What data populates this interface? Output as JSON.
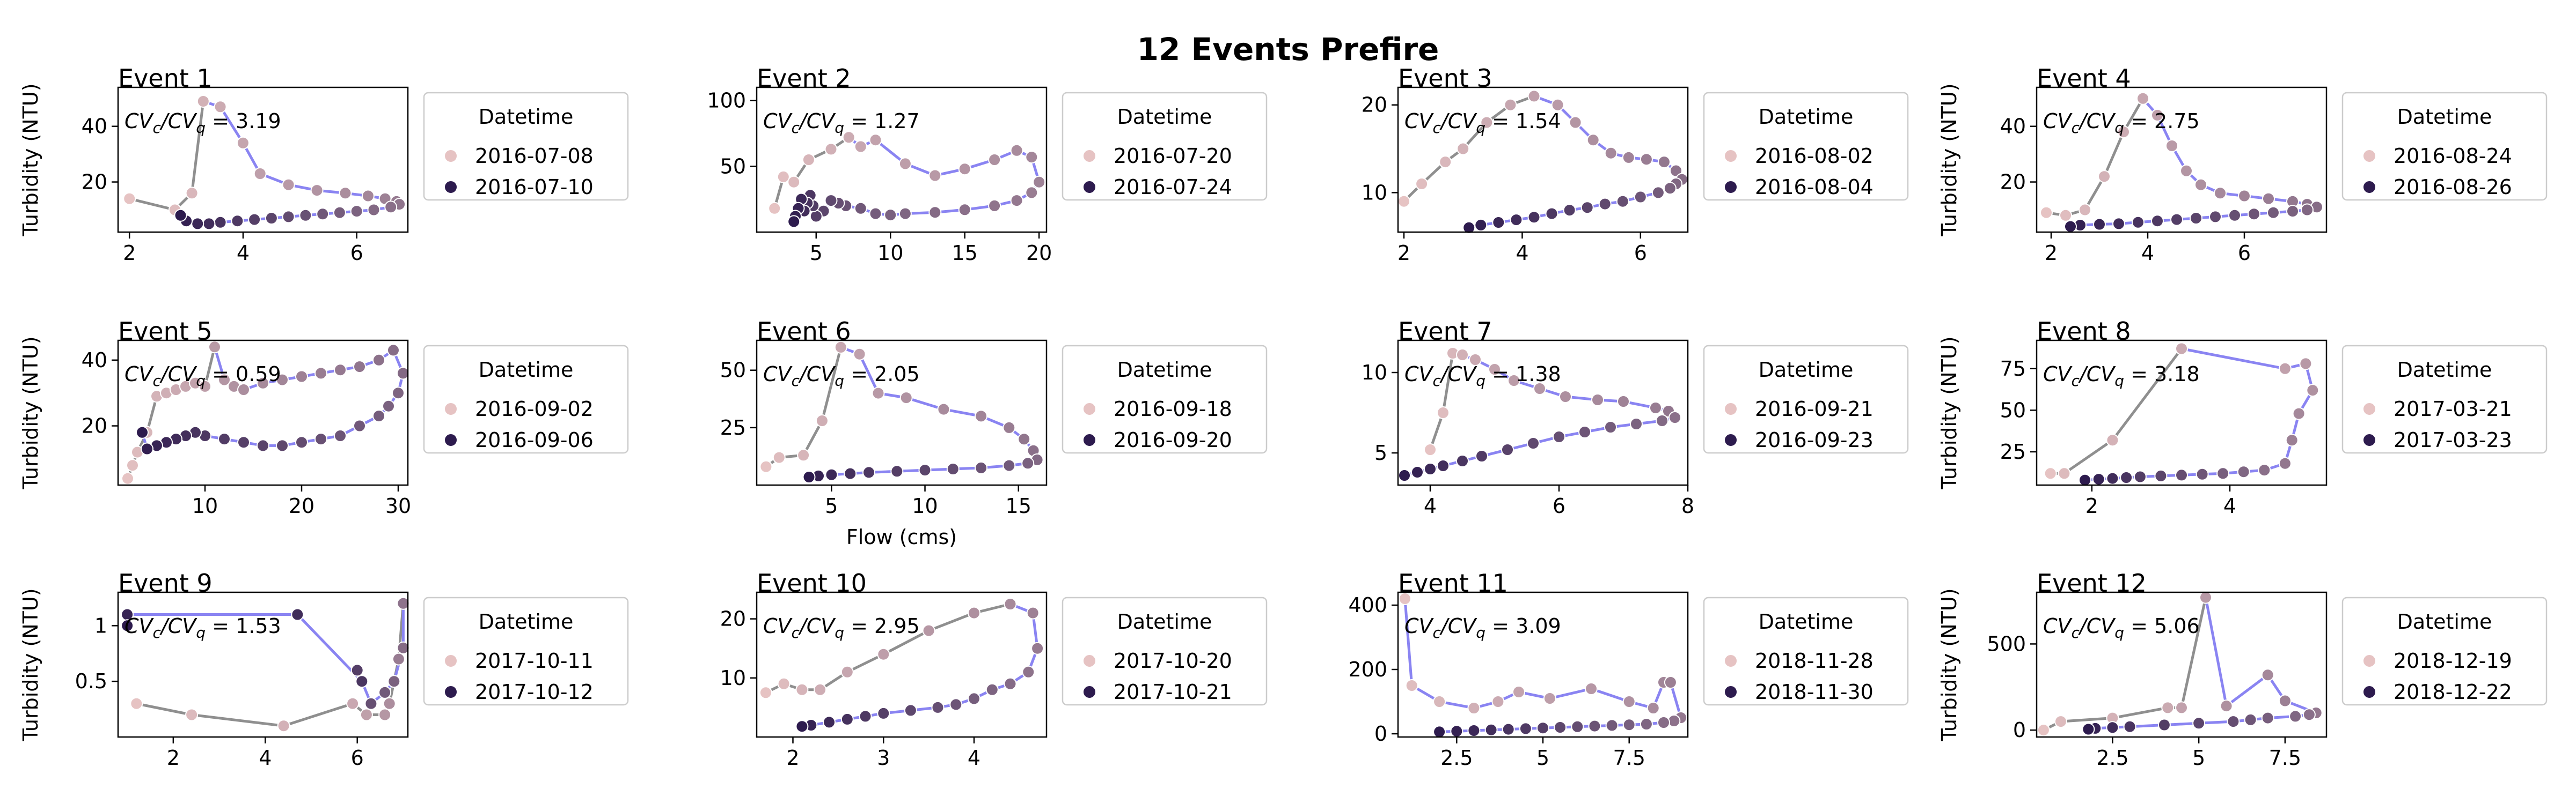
{
  "suptitle": "12 Events Prefire",
  "ylabel": "Turbidity (NTU)",
  "xlabel": "Flow (cms)",
  "legend_title": "Datetime",
  "ratio_label": "CVc/CVq",
  "colors": {
    "early": "#e6c3c3",
    "late": "#2d1b4e",
    "line_rising": "#8f8f8f",
    "line_falling": "#8a84f2"
  },
  "chart_data": [
    {
      "type": "scatter",
      "title": "Event 1",
      "ratio": "3.19",
      "legend": [
        "2016-07-08",
        "2016-07-10"
      ],
      "xlim": [
        1.8,
        6.9
      ],
      "ylim": [
        2,
        54
      ],
      "xticks": [
        2,
        4,
        6
      ],
      "yticks": [
        20,
        40
      ],
      "x": [
        2.0,
        2.8,
        3.1,
        3.3,
        3.6,
        4.0,
        4.3,
        4.8,
        5.3,
        5.8,
        6.2,
        6.5,
        6.7,
        6.75,
        6.6,
        6.3,
        6.0,
        5.7,
        5.4,
        5.1,
        4.8,
        4.5,
        4.2,
        3.9,
        3.6,
        3.4,
        3.2,
        3.0,
        2.9
      ],
      "y": [
        14,
        10,
        16,
        49,
        47,
        34,
        23,
        19,
        17,
        16,
        15,
        14,
        13,
        12,
        11,
        10,
        9.5,
        9,
        8.5,
        8,
        7.5,
        7,
        6.5,
        6,
        5.5,
        5,
        5,
        6,
        8
      ]
    },
    {
      "type": "scatter",
      "title": "Event 2",
      "ratio": "1.27",
      "legend": [
        "2016-07-20",
        "2016-07-24"
      ],
      "xlim": [
        1,
        20.5
      ],
      "ylim": [
        0,
        110
      ],
      "xticks": [
        5,
        10,
        15,
        20
      ],
      "yticks": [
        50,
        100
      ],
      "x": [
        2.2,
        2.8,
        3.5,
        4.5,
        6,
        7.2,
        8,
        9,
        11,
        13,
        15,
        17,
        18.5,
        19.5,
        20,
        19.5,
        18.5,
        17,
        15,
        13,
        11,
        10,
        9,
        8,
        7,
        6.5,
        6,
        5.5,
        5,
        4.8,
        4.6,
        4.4,
        4.2,
        4.0,
        3.8,
        3.6,
        3.5
      ],
      "y": [
        18,
        42,
        38,
        55,
        63,
        72,
        65,
        70,
        52,
        43,
        48,
        55,
        62,
        57,
        38,
        30,
        24,
        20,
        17,
        15,
        14,
        13,
        14,
        18,
        20,
        22,
        24,
        16,
        12,
        20,
        28,
        22,
        16,
        25,
        18,
        12,
        8
      ]
    },
    {
      "type": "scatter",
      "title": "Event 3",
      "ratio": "1.54",
      "legend": [
        "2016-08-02",
        "2016-08-04"
      ],
      "xlim": [
        1.9,
        6.8
      ],
      "ylim": [
        5.5,
        22
      ],
      "xticks": [
        2,
        4,
        6
      ],
      "yticks": [
        10,
        20
      ],
      "x": [
        2.0,
        2.3,
        2.7,
        3.0,
        3.4,
        3.8,
        4.2,
        4.6,
        4.9,
        5.2,
        5.5,
        5.8,
        6.1,
        6.4,
        6.6,
        6.7,
        6.6,
        6.5,
        6.3,
        6.0,
        5.7,
        5.4,
        5.1,
        4.8,
        4.5,
        4.2,
        3.9,
        3.6,
        3.3,
        3.1
      ],
      "y": [
        9,
        11,
        13.5,
        15,
        18,
        20,
        21,
        20,
        18,
        16,
        14.5,
        14,
        13.8,
        13.5,
        12.5,
        11.5,
        11,
        10.5,
        10,
        9.5,
        9,
        8.7,
        8.3,
        8,
        7.6,
        7.2,
        6.9,
        6.6,
        6.3,
        6
      ]
    },
    {
      "type": "scatter",
      "title": "Event 4",
      "ratio": "2.75",
      "legend": [
        "2016-08-24",
        "2016-08-26"
      ],
      "xlim": [
        1.7,
        7.7
      ],
      "ylim": [
        2,
        54
      ],
      "xticks": [
        2,
        4,
        6
      ],
      "yticks": [
        20,
        40
      ],
      "x": [
        1.9,
        2.3,
        2.7,
        3.1,
        3.5,
        3.9,
        4.2,
        4.5,
        4.8,
        5.1,
        5.5,
        6.0,
        6.5,
        7.0,
        7.3,
        7.5,
        7.3,
        7.0,
        6.6,
        6.2,
        5.8,
        5.4,
        5.0,
        4.6,
        4.2,
        3.8,
        3.4,
        3.0,
        2.6,
        2.4
      ],
      "y": [
        9,
        8,
        10,
        22,
        38,
        50,
        44,
        33,
        24,
        19,
        16,
        15,
        14,
        13,
        12,
        11,
        10,
        9.5,
        9,
        8.5,
        8,
        7.5,
        7,
        6.5,
        6,
        5.5,
        5,
        4.8,
        4.5,
        4
      ]
    },
    {
      "type": "scatter",
      "title": "Event 5",
      "ratio": "0.59",
      "legend": [
        "2016-09-02",
        "2016-09-06"
      ],
      "xlim": [
        1,
        31
      ],
      "ylim": [
        2,
        46
      ],
      "xticks": [
        10,
        20,
        30
      ],
      "yticks": [
        20,
        40
      ],
      "x": [
        2,
        2.5,
        3,
        4,
        5,
        6,
        7,
        8,
        9,
        10,
        11,
        12,
        13,
        14,
        16,
        18,
        20,
        22,
        24,
        26,
        28,
        29.5,
        30.5,
        30,
        29,
        28,
        26,
        24,
        22,
        20,
        18,
        16,
        14,
        12,
        10,
        9,
        8,
        7,
        6,
        5,
        4,
        3.5
      ],
      "y": [
        4,
        8,
        12,
        18,
        29,
        30,
        31,
        32,
        33,
        32,
        44,
        34,
        32,
        31,
        33,
        34,
        35,
        36,
        37,
        38,
        40,
        43,
        36,
        30,
        26,
        23,
        20,
        17,
        16,
        15,
        14,
        14,
        15,
        16,
        17,
        18,
        17,
        16,
        15,
        14,
        13,
        18
      ]
    },
    {
      "type": "scatter",
      "title": "Event 6",
      "ratio": "2.05",
      "legend": [
        "2016-09-18",
        "2016-09-20"
      ],
      "xlim": [
        1,
        16.5
      ],
      "ylim": [
        0,
        63
      ],
      "xticks": [
        5,
        10,
        15
      ],
      "yticks": [
        25,
        50
      ],
      "x": [
        1.5,
        2.2,
        3.5,
        4.5,
        5.5,
        6.5,
        7.5,
        9,
        11,
        13,
        14.5,
        15.3,
        15.8,
        16,
        15.5,
        14.5,
        13,
        11.5,
        10,
        8.5,
        7,
        6,
        5,
        4.3,
        3.8
      ],
      "y": [
        8,
        12,
        13,
        28,
        60,
        57,
        40,
        38,
        33,
        30,
        25,
        20,
        15,
        11,
        9.5,
        8.5,
        7.5,
        7,
        6.5,
        6,
        5.5,
        5,
        4.5,
        4,
        3.5
      ]
    },
    {
      "type": "scatter",
      "title": "Event 7",
      "ratio": "1.38",
      "legend": [
        "2016-09-21",
        "2016-09-23"
      ],
      "xlim": [
        3.5,
        8
      ],
      "ylim": [
        3,
        12
      ],
      "xticks": [
        4,
        6,
        8
      ],
      "yticks": [
        5,
        10
      ],
      "x": [
        4.0,
        4.2,
        4.35,
        4.5,
        4.7,
        5.0,
        5.3,
        5.7,
        6.1,
        6.6,
        7.0,
        7.5,
        7.7,
        7.8,
        7.6,
        7.2,
        6.8,
        6.4,
        6.0,
        5.6,
        5.2,
        4.8,
        4.5,
        4.2,
        4.0,
        3.8,
        3.6
      ],
      "y": [
        5.2,
        7.5,
        11.2,
        11.1,
        10.8,
        10.2,
        9.5,
        9,
        8.5,
        8.3,
        8.2,
        7.8,
        7.6,
        7.2,
        7,
        6.8,
        6.6,
        6.3,
        6,
        5.6,
        5.2,
        4.8,
        4.5,
        4.2,
        4,
        3.8,
        3.6
      ]
    },
    {
      "type": "scatter",
      "title": "Event 8",
      "ratio": "3.18",
      "legend": [
        "2017-03-21",
        "2017-03-23"
      ],
      "xlim": [
        1.2,
        5.4
      ],
      "ylim": [
        5,
        92
      ],
      "xticks": [
        2,
        4
      ],
      "yticks": [
        25,
        50,
        75
      ],
      "x": [
        1.4,
        1.6,
        2.3,
        3.3,
        4.8,
        5.1,
        5.2,
        5.0,
        4.9,
        4.8,
        4.5,
        4.2,
        3.9,
        3.6,
        3.3,
        3.0,
        2.7,
        2.5,
        2.3,
        2.1,
        1.9
      ],
      "y": [
        12,
        12,
        32,
        87,
        75,
        78,
        62,
        48,
        32,
        18,
        14,
        13,
        12,
        11.5,
        11,
        10.5,
        10,
        9.5,
        9,
        8.5,
        8
      ]
    },
    {
      "type": "scatter",
      "title": "Event 9",
      "ratio": "1.53",
      "legend": [
        "2017-10-11",
        "2017-10-12"
      ],
      "xlim": [
        0.8,
        7.1
      ],
      "ylim": [
        0,
        1.3
      ],
      "xticks": [
        2,
        4,
        6
      ],
      "yticks": [
        0.5,
        1.0
      ],
      "x": [
        1.2,
        2.4,
        4.4,
        5.9,
        6.2,
        6.6,
        6.7,
        6.8,
        6.9,
        7.0,
        7.0,
        6.8,
        6.6,
        6.3,
        6.1,
        6.0,
        6.1,
        4.7,
        1.0,
        1.0
      ],
      "y": [
        0.3,
        0.2,
        0.1,
        0.3,
        0.2,
        0.2,
        0.3,
        0.5,
        0.7,
        1.2,
        0.8,
        0.5,
        0.4,
        0.3,
        0.5,
        0.6,
        0.5,
        1.1,
        1.1,
        1.0
      ]
    },
    {
      "type": "scatter",
      "title": "Event 10",
      "ratio": "2.95",
      "legend": [
        "2017-10-20",
        "2017-10-21"
      ],
      "xlim": [
        1.6,
        4.8
      ],
      "ylim": [
        0,
        24.5
      ],
      "xticks": [
        2,
        3,
        4
      ],
      "yticks": [
        10,
        20
      ],
      "x": [
        1.7,
        1.9,
        2.1,
        2.3,
        2.6,
        3.0,
        3.5,
        4.0,
        4.4,
        4.65,
        4.7,
        4.6,
        4.4,
        4.2,
        4.0,
        3.8,
        3.6,
        3.3,
        3.0,
        2.8,
        2.6,
        2.4,
        2.2,
        2.1
      ],
      "y": [
        7.5,
        9,
        8,
        8,
        11,
        14,
        18,
        21,
        22.5,
        21,
        15,
        11,
        9,
        8,
        6.5,
        5.5,
        5,
        4.5,
        4,
        3.5,
        3,
        2.5,
        2,
        1.8
      ]
    },
    {
      "type": "scatter",
      "title": "Event 11",
      "ratio": "3.09",
      "legend": [
        "2018-11-28",
        "2018-11-30"
      ],
      "xlim": [
        0.8,
        9.2
      ],
      "ylim": [
        -10,
        440
      ],
      "xticks": [
        2.5,
        5.0,
        7.5
      ],
      "yticks": [
        0,
        200,
        400
      ],
      "x": [
        1.0,
        1.2,
        2.0,
        3.0,
        3.7,
        4.3,
        5.2,
        6.4,
        7.5,
        8.2,
        8.5,
        8.7,
        9.0,
        8.8,
        8.5,
        8.0,
        7.5,
        7.0,
        6.5,
        6.0,
        5.5,
        5.0,
        4.5,
        4.0,
        3.5,
        3.0,
        2.5,
        2.0
      ],
      "y": [
        420,
        150,
        100,
        80,
        100,
        130,
        110,
        140,
        100,
        80,
        160,
        160,
        50,
        40,
        35,
        30,
        28,
        26,
        24,
        22,
        20,
        18,
        16,
        14,
        12,
        10,
        8,
        6
      ]
    },
    {
      "type": "scatter",
      "title": "Event 12",
      "ratio": "5.06",
      "legend": [
        "2018-12-19",
        "2018-12-22"
      ],
      "xlim": [
        0.3,
        8.7
      ],
      "ylim": [
        -40,
        800
      ],
      "xticks": [
        2.5,
        5.0,
        7.5
      ],
      "yticks": [
        0,
        500
      ],
      "x": [
        0.5,
        1.0,
        2.5,
        4.1,
        4.5,
        5.2,
        5.8,
        7.0,
        7.5,
        8.4,
        8.2,
        7.8,
        7.0,
        6.5,
        6.0,
        5.0,
        4.0,
        3.0,
        2.5,
        2.0,
        1.8
      ],
      "y": [
        0,
        50,
        70,
        130,
        130,
        770,
        140,
        320,
        170,
        100,
        90,
        80,
        70,
        60,
        50,
        40,
        30,
        20,
        15,
        10,
        5
      ]
    }
  ]
}
